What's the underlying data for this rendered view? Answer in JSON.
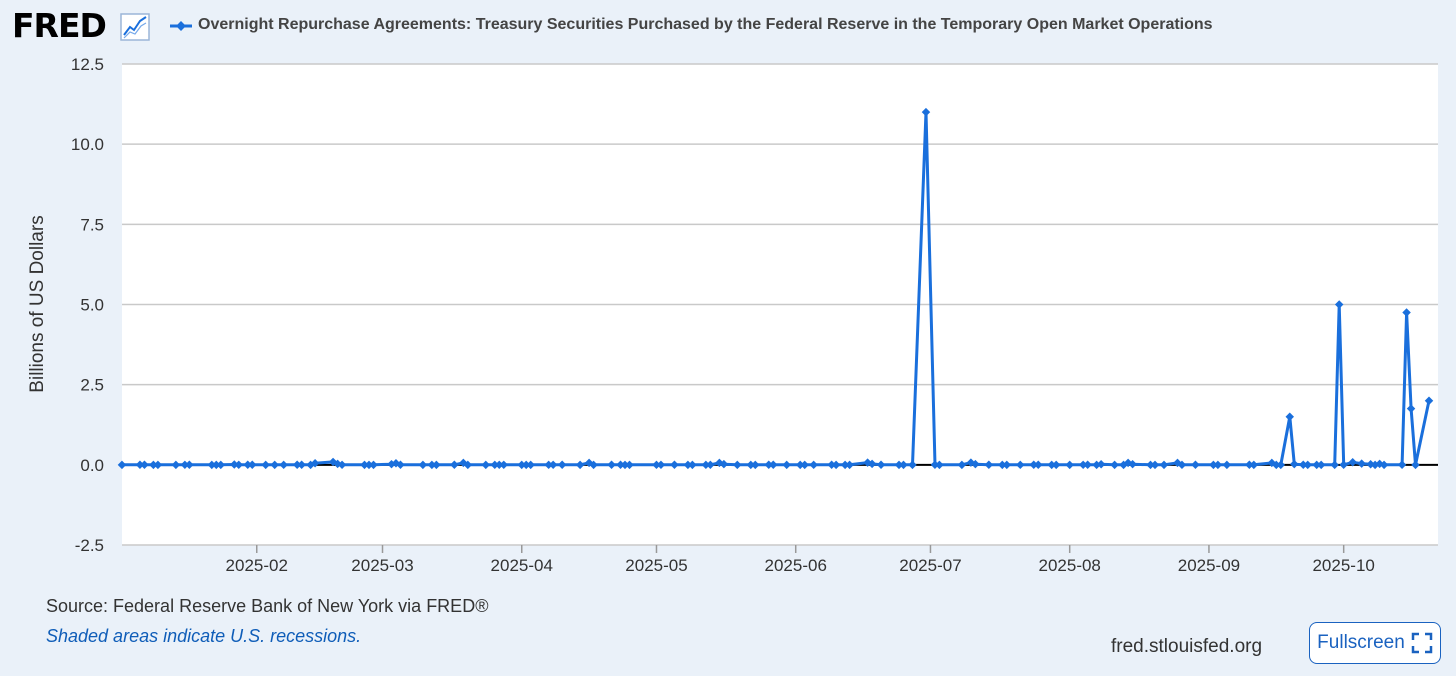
{
  "header": {
    "logo_text": "FRED",
    "title": "Overnight Repurchase Agreements: Treasury Securities Purchased by the Federal Reserve in the Temporary Open Market Operations"
  },
  "colors": {
    "series": "#1a6fdc",
    "background": "#eaf1f9",
    "plot": "#ffffff",
    "grid": "#c9c9c9",
    "zero_line": "#000000"
  },
  "chart_data": {
    "type": "line",
    "title": "Overnight Repurchase Agreements: Treasury Securities Purchased by the Federal Reserve in the Temporary Open Market Operations",
    "xlabel": "",
    "ylabel": "Billions of US Dollars",
    "ylim": [
      -2.5,
      12.5
    ],
    "xlim": [
      "2025-01-02",
      "2025-10-22"
    ],
    "grid": true,
    "legend": "top-left",
    "y_ticks": [
      "12.5",
      "10.0",
      "7.5",
      "5.0",
      "2.5",
      "0.0",
      "-2.5"
    ],
    "x_ticks": [
      {
        "label": "2025-02",
        "date": "2025-02-01"
      },
      {
        "label": "2025-03",
        "date": "2025-03-01"
      },
      {
        "label": "2025-04",
        "date": "2025-04-01"
      },
      {
        "label": "2025-05",
        "date": "2025-05-01"
      },
      {
        "label": "2025-06",
        "date": "2025-06-01"
      },
      {
        "label": "2025-07",
        "date": "2025-07-01"
      },
      {
        "label": "2025-08",
        "date": "2025-08-01"
      },
      {
        "label": "2025-09",
        "date": "2025-09-01"
      },
      {
        "label": "2025-10",
        "date": "2025-10-01"
      }
    ],
    "series": [
      {
        "points": [
          [
            "2025-01-02",
            0.0
          ],
          [
            "2025-01-06",
            0.0
          ],
          [
            "2025-01-07",
            0.0
          ],
          [
            "2025-01-09",
            0.0
          ],
          [
            "2025-01-10",
            0.0
          ],
          [
            "2025-01-14",
            0.0
          ],
          [
            "2025-01-16",
            0.0
          ],
          [
            "2025-01-17",
            0.0
          ],
          [
            "2025-01-22",
            0.0
          ],
          [
            "2025-01-23",
            0.0
          ],
          [
            "2025-01-24",
            0.0
          ],
          [
            "2025-01-27",
            0.01
          ],
          [
            "2025-01-28",
            0.0
          ],
          [
            "2025-01-30",
            0.0
          ],
          [
            "2025-01-31",
            0.0
          ],
          [
            "2025-02-03",
            0.0
          ],
          [
            "2025-02-05",
            0.0
          ],
          [
            "2025-02-07",
            0.0
          ],
          [
            "2025-02-10",
            0.0
          ],
          [
            "2025-02-11",
            0.0
          ],
          [
            "2025-02-13",
            0.0
          ],
          [
            "2025-02-14",
            0.05
          ],
          [
            "2025-02-18",
            0.09
          ],
          [
            "2025-02-19",
            0.03
          ],
          [
            "2025-02-20",
            0.0
          ],
          [
            "2025-02-25",
            0.0
          ],
          [
            "2025-02-26",
            0.0
          ],
          [
            "2025-02-27",
            0.0
          ],
          [
            "2025-03-03",
            0.02
          ],
          [
            "2025-03-04",
            0.05
          ],
          [
            "2025-03-05",
            0.0
          ],
          [
            "2025-03-10",
            0.0
          ],
          [
            "2025-03-12",
            0.0
          ],
          [
            "2025-03-13",
            0.0
          ],
          [
            "2025-03-17",
            0.0
          ],
          [
            "2025-03-19",
            0.06
          ],
          [
            "2025-03-20",
            0.0
          ],
          [
            "2025-03-24",
            0.0
          ],
          [
            "2025-03-26",
            0.0
          ],
          [
            "2025-03-27",
            0.0
          ],
          [
            "2025-03-28",
            0.0
          ],
          [
            "2025-04-01",
            0.0
          ],
          [
            "2025-04-02",
            0.0
          ],
          [
            "2025-04-03",
            0.0
          ],
          [
            "2025-04-07",
            0.0
          ],
          [
            "2025-04-08",
            0.0
          ],
          [
            "2025-04-10",
            0.0
          ],
          [
            "2025-04-14",
            0.0
          ],
          [
            "2025-04-16",
            0.06
          ],
          [
            "2025-04-17",
            0.0
          ],
          [
            "2025-04-21",
            0.0
          ],
          [
            "2025-04-23",
            0.0
          ],
          [
            "2025-04-24",
            0.0
          ],
          [
            "2025-04-25",
            0.0
          ],
          [
            "2025-05-01",
            0.0
          ],
          [
            "2025-05-02",
            0.0
          ],
          [
            "2025-05-05",
            0.0
          ],
          [
            "2025-05-08",
            0.0
          ],
          [
            "2025-05-09",
            0.0
          ],
          [
            "2025-05-12",
            0.0
          ],
          [
            "2025-05-13",
            0.0
          ],
          [
            "2025-05-15",
            0.06
          ],
          [
            "2025-05-16",
            0.02
          ],
          [
            "2025-05-19",
            0.0
          ],
          [
            "2025-05-22",
            0.0
          ],
          [
            "2025-05-23",
            0.0
          ],
          [
            "2025-05-26",
            0.0
          ],
          [
            "2025-05-27",
            0.0
          ],
          [
            "2025-05-30",
            0.0
          ],
          [
            "2025-06-02",
            0.0
          ],
          [
            "2025-06-03",
            0.0
          ],
          [
            "2025-06-05",
            0.0
          ],
          [
            "2025-06-09",
            0.0
          ],
          [
            "2025-06-10",
            0.0
          ],
          [
            "2025-06-12",
            0.0
          ],
          [
            "2025-06-13",
            0.0
          ],
          [
            "2025-06-17",
            0.07
          ],
          [
            "2025-06-18",
            0.03
          ],
          [
            "2025-06-20",
            0.0
          ],
          [
            "2025-06-24",
            0.0
          ],
          [
            "2025-06-25",
            0.0
          ],
          [
            "2025-06-27",
            0.0
          ],
          [
            "2025-06-30",
            11.0
          ],
          [
            "2025-07-02",
            0.0
          ],
          [
            "2025-07-03",
            0.0
          ],
          [
            "2025-07-08",
            0.0
          ],
          [
            "2025-07-10",
            0.07
          ],
          [
            "2025-07-11",
            0.02
          ],
          [
            "2025-07-14",
            0.0
          ],
          [
            "2025-07-17",
            0.0
          ],
          [
            "2025-07-18",
            0.0
          ],
          [
            "2025-07-21",
            0.0
          ],
          [
            "2025-07-24",
            0.0
          ],
          [
            "2025-07-25",
            0.0
          ],
          [
            "2025-07-28",
            0.0
          ],
          [
            "2025-07-29",
            0.0
          ],
          [
            "2025-08-01",
            0.0
          ],
          [
            "2025-08-04",
            0.0
          ],
          [
            "2025-08-05",
            0.0
          ],
          [
            "2025-08-07",
            0.0
          ],
          [
            "2025-08-08",
            0.02
          ],
          [
            "2025-08-11",
            0.0
          ],
          [
            "2025-08-13",
            0.0
          ],
          [
            "2025-08-14",
            0.06
          ],
          [
            "2025-08-15",
            0.02
          ],
          [
            "2025-08-19",
            0.0
          ],
          [
            "2025-08-20",
            0.0
          ],
          [
            "2025-08-22",
            0.0
          ],
          [
            "2025-08-25",
            0.06
          ],
          [
            "2025-08-26",
            0.0
          ],
          [
            "2025-08-29",
            0.0
          ],
          [
            "2025-09-02",
            0.0
          ],
          [
            "2025-09-03",
            0.0
          ],
          [
            "2025-09-05",
            0.0
          ],
          [
            "2025-09-10",
            0.0
          ],
          [
            "2025-09-11",
            0.0
          ],
          [
            "2025-09-15",
            0.06
          ],
          [
            "2025-09-16",
            0.0
          ],
          [
            "2025-09-17",
            0.0
          ],
          [
            "2025-09-19",
            1.5
          ],
          [
            "2025-09-20",
            0.02
          ],
          [
            "2025-09-22",
            0.0
          ],
          [
            "2025-09-23",
            0.0
          ],
          [
            "2025-09-25",
            0.0
          ],
          [
            "2025-09-26",
            0.0
          ],
          [
            "2025-09-29",
            0.0
          ],
          [
            "2025-09-30",
            5.0
          ],
          [
            "2025-10-01",
            0.0
          ],
          [
            "2025-10-03",
            0.08
          ],
          [
            "2025-10-05",
            0.04
          ],
          [
            "2025-10-07",
            0.02
          ],
          [
            "2025-10-08",
            0.0
          ],
          [
            "2025-10-09",
            0.03
          ],
          [
            "2025-10-10",
            0.0
          ],
          [
            "2025-10-14",
            0.0
          ],
          [
            "2025-10-15",
            4.75
          ],
          [
            "2025-10-16",
            1.75
          ],
          [
            "2025-10-17",
            0.0
          ],
          [
            "2025-10-20",
            2.0
          ]
        ]
      }
    ]
  },
  "footer": {
    "source": "Source: Federal Reserve Bank of New York via FRED®",
    "recession_note": "Shaded areas indicate U.S. recessions.",
    "site": "fred.stlouisfed.org",
    "fullscreen_label": "Fullscreen"
  }
}
